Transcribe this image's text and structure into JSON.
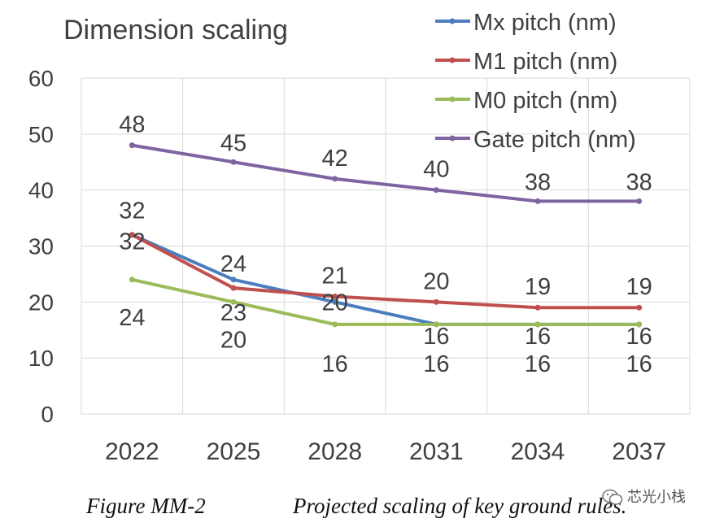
{
  "chart_data": {
    "type": "line",
    "title": "Dimension scaling",
    "categories": [
      "2022",
      "2025",
      "2028",
      "2031",
      "2034",
      "2037"
    ],
    "ylim": [
      0,
      60
    ],
    "yticks": [
      "0",
      "10",
      "20",
      "30",
      "40",
      "50",
      "60"
    ],
    "grid": true,
    "legend_position": "top-right",
    "series": [
      {
        "name": "Mx pitch (nm)",
        "color": "#4a7ebf",
        "values": [
          32,
          24,
          20,
          16,
          16,
          16
        ],
        "labels": [
          "32",
          "24",
          "20",
          "16",
          "16",
          "16"
        ]
      },
      {
        "name": "M1 pitch (nm)",
        "color": "#c0504d",
        "values": [
          32,
          22.5,
          21,
          20,
          19,
          19
        ],
        "labels": [
          "32",
          "23",
          "21",
          "20",
          "19",
          "19"
        ]
      },
      {
        "name": "M0 pitch (nm)",
        "color": "#9bbb59",
        "values": [
          24,
          20,
          16,
          16,
          16,
          16
        ],
        "labels": [
          "24",
          "20",
          "16",
          "16",
          "16",
          "16"
        ]
      },
      {
        "name": "Gate pitch (nm)",
        "color": "#8064a2",
        "values": [
          48,
          45,
          42,
          40,
          38,
          38
        ],
        "labels": [
          "48",
          "45",
          "42",
          "40",
          "38",
          "38"
        ]
      }
    ]
  },
  "caption": {
    "figure": "Figure MM-2",
    "text": "Projected scaling of key ground rules."
  },
  "watermark": {
    "text": "芯光小栈",
    "icon": "wechat-icon"
  }
}
